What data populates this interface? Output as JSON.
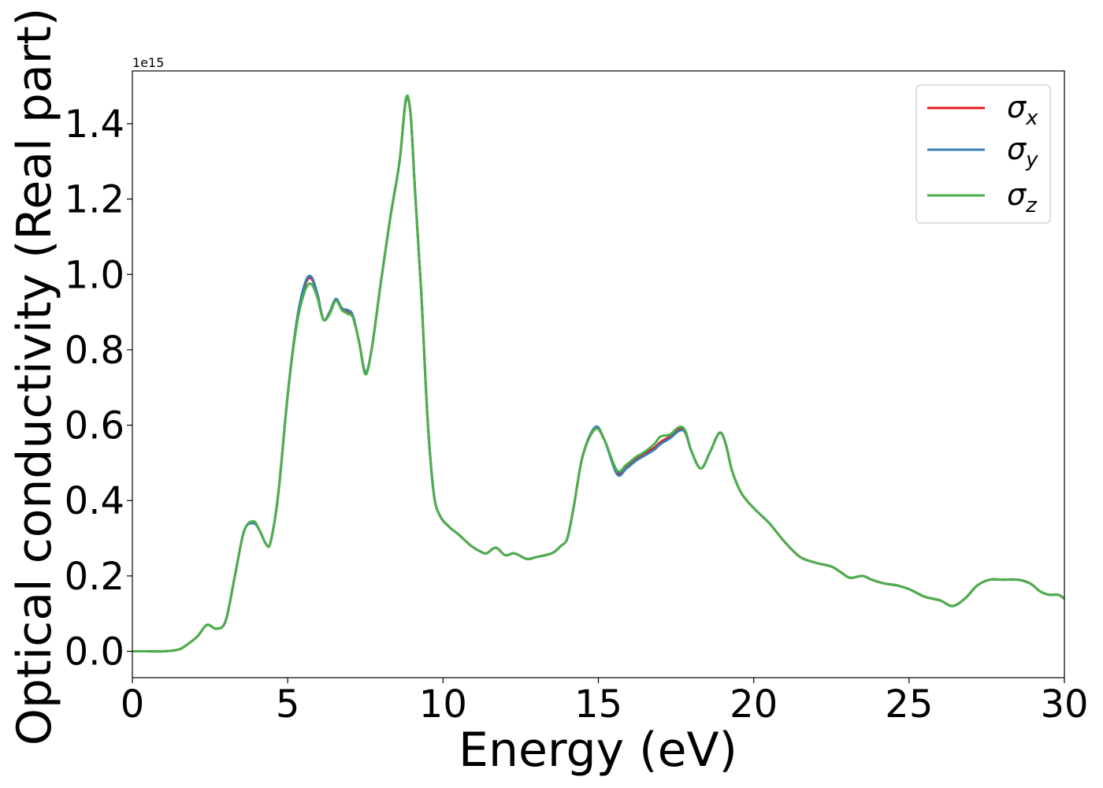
{
  "chart_data": {
    "type": "line",
    "title": "",
    "xlabel": "Energy (eV)",
    "ylabel": "Optical conductivity (Real part)",
    "y_offset_label": "1e15",
    "xlim": [
      0,
      30
    ],
    "ylim": [
      -0.07,
      1.54
    ],
    "x_ticks": [
      0,
      5,
      10,
      15,
      20,
      25,
      30
    ],
    "x_tick_labels": [
      "0",
      "5",
      "10",
      "15",
      "20",
      "25",
      "30"
    ],
    "y_ticks": [
      0.0,
      0.2,
      0.4,
      0.6,
      0.8,
      1.0,
      1.2,
      1.4
    ],
    "y_tick_labels": [
      "0.0",
      "0.2",
      "0.4",
      "0.6",
      "0.8",
      "1.0",
      "1.2",
      "1.4"
    ],
    "grid": false,
    "legend_position": "top-right",
    "x": [
      0,
      0.5,
      1.0,
      1.5,
      1.8,
      2.1,
      2.4,
      2.7,
      3.0,
      3.3,
      3.6,
      3.9,
      4.1,
      4.3,
      4.45,
      4.7,
      5.0,
      5.3,
      5.55,
      5.75,
      5.95,
      6.15,
      6.35,
      6.55,
      6.75,
      6.95,
      7.1,
      7.3,
      7.5,
      7.7,
      8.0,
      8.3,
      8.6,
      8.8,
      8.95,
      9.1,
      9.3,
      9.5,
      9.7,
      9.9,
      10.2,
      10.5,
      10.9,
      11.2,
      11.4,
      11.7,
      12.0,
      12.3,
      12.7,
      13.0,
      13.5,
      13.8,
      14.0,
      14.2,
      14.5,
      14.9,
      15.2,
      15.6,
      15.9,
      16.2,
      16.5,
      16.8,
      17.0,
      17.3,
      17.6,
      17.8,
      18.0,
      18.3,
      18.6,
      18.9,
      19.1,
      19.3,
      19.6,
      20.0,
      20.5,
      21.0,
      21.5,
      22.0,
      22.5,
      22.8,
      23.1,
      23.5,
      23.8,
      24.2,
      24.6,
      25.0,
      25.5,
      26.0,
      26.4,
      26.8,
      27.2,
      27.6,
      28.0,
      28.5,
      28.9,
      29.2,
      29.5,
      29.8,
      30.0
    ],
    "series": [
      {
        "name": "σx",
        "color": "#e41a1c",
        "values": [
          0.0,
          0.0,
          0.0,
          0.005,
          0.02,
          0.04,
          0.07,
          0.06,
          0.08,
          0.2,
          0.32,
          0.34,
          0.32,
          0.285,
          0.29,
          0.42,
          0.68,
          0.88,
          0.97,
          0.99,
          0.95,
          0.88,
          0.9,
          0.93,
          0.91,
          0.9,
          0.89,
          0.82,
          0.74,
          0.8,
          0.98,
          1.15,
          1.3,
          1.46,
          1.43,
          1.22,
          0.95,
          0.62,
          0.42,
          0.36,
          0.33,
          0.31,
          0.28,
          0.265,
          0.26,
          0.275,
          0.255,
          0.26,
          0.245,
          0.25,
          0.26,
          0.28,
          0.3,
          0.38,
          0.52,
          0.59,
          0.56,
          0.475,
          0.49,
          0.51,
          0.525,
          0.54,
          0.555,
          0.57,
          0.59,
          0.58,
          0.53,
          0.485,
          0.53,
          0.58,
          0.55,
          0.48,
          0.42,
          0.38,
          0.34,
          0.29,
          0.25,
          0.235,
          0.225,
          0.21,
          0.195,
          0.2,
          0.19,
          0.18,
          0.175,
          0.165,
          0.145,
          0.135,
          0.12,
          0.14,
          0.175,
          0.19,
          0.19,
          0.19,
          0.18,
          0.16,
          0.15,
          0.15,
          0.14
        ]
      },
      {
        "name": "σy",
        "color": "#377eb8",
        "values": [
          0.0,
          0.0,
          0.0,
          0.005,
          0.02,
          0.04,
          0.07,
          0.06,
          0.08,
          0.2,
          0.32,
          0.34,
          0.32,
          0.285,
          0.29,
          0.42,
          0.68,
          0.88,
          0.975,
          0.995,
          0.95,
          0.88,
          0.9,
          0.935,
          0.91,
          0.905,
          0.89,
          0.82,
          0.74,
          0.8,
          0.98,
          1.15,
          1.3,
          1.46,
          1.43,
          1.22,
          0.95,
          0.62,
          0.42,
          0.36,
          0.33,
          0.31,
          0.28,
          0.265,
          0.26,
          0.275,
          0.255,
          0.26,
          0.245,
          0.25,
          0.26,
          0.28,
          0.3,
          0.38,
          0.52,
          0.595,
          0.56,
          0.47,
          0.485,
          0.505,
          0.52,
          0.535,
          0.55,
          0.565,
          0.585,
          0.58,
          0.53,
          0.485,
          0.53,
          0.58,
          0.55,
          0.48,
          0.42,
          0.38,
          0.34,
          0.29,
          0.25,
          0.235,
          0.225,
          0.21,
          0.195,
          0.2,
          0.19,
          0.18,
          0.175,
          0.165,
          0.145,
          0.135,
          0.12,
          0.14,
          0.175,
          0.19,
          0.19,
          0.19,
          0.18,
          0.16,
          0.15,
          0.15,
          0.14
        ]
      },
      {
        "name": "σz",
        "color": "#4daf4a",
        "values": [
          0.0,
          0.0,
          0.0,
          0.005,
          0.02,
          0.04,
          0.07,
          0.06,
          0.08,
          0.2,
          0.32,
          0.345,
          0.32,
          0.285,
          0.29,
          0.42,
          0.68,
          0.87,
          0.955,
          0.975,
          0.94,
          0.88,
          0.895,
          0.93,
          0.905,
          0.895,
          0.885,
          0.82,
          0.735,
          0.8,
          0.98,
          1.15,
          1.3,
          1.465,
          1.43,
          1.22,
          0.95,
          0.62,
          0.42,
          0.36,
          0.33,
          0.31,
          0.28,
          0.265,
          0.26,
          0.275,
          0.255,
          0.26,
          0.245,
          0.25,
          0.26,
          0.28,
          0.3,
          0.38,
          0.52,
          0.59,
          0.56,
          0.48,
          0.495,
          0.515,
          0.53,
          0.55,
          0.57,
          0.575,
          0.595,
          0.585,
          0.53,
          0.485,
          0.53,
          0.58,
          0.55,
          0.48,
          0.42,
          0.38,
          0.34,
          0.29,
          0.25,
          0.235,
          0.225,
          0.21,
          0.195,
          0.2,
          0.19,
          0.18,
          0.175,
          0.165,
          0.145,
          0.135,
          0.12,
          0.14,
          0.175,
          0.19,
          0.19,
          0.19,
          0.18,
          0.16,
          0.15,
          0.15,
          0.14
        ]
      }
    ]
  }
}
